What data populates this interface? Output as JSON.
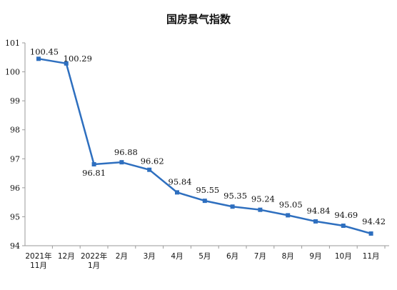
{
  "chart_data": {
    "type": "line",
    "title": "国房景气指数",
    "xlabel": "",
    "ylabel": "",
    "categories": [
      [
        "2021年",
        "11月"
      ],
      [
        "12月"
      ],
      [
        "2022年",
        "1月"
      ],
      [
        "2月"
      ],
      [
        "3月"
      ],
      [
        "4月"
      ],
      [
        "5月"
      ],
      [
        "6月"
      ],
      [
        "7月"
      ],
      [
        "8月"
      ],
      [
        "9月"
      ],
      [
        "10月"
      ],
      [
        "11月"
      ]
    ],
    "series": [
      {
        "values": [
          100.45,
          100.29,
          96.81,
          96.88,
          96.62,
          95.84,
          95.55,
          95.35,
          95.24,
          95.05,
          94.84,
          94.69,
          94.42
        ],
        "labels": [
          "100.45",
          "100.29",
          "96.81",
          "96.88",
          "96.62",
          "95.84",
          "95.55",
          "95.35",
          "95.24",
          "95.05",
          "94.84",
          "94.69",
          "94.42"
        ],
        "color": "#2e6fbf"
      }
    ],
    "ylim": [
      94,
      101
    ],
    "yticks": [
      "94",
      "95",
      "96",
      "97",
      "98",
      "99",
      "100",
      "101"
    ],
    "grid": false,
    "legend": "none",
    "axis_color": "#9a9a9a"
  }
}
